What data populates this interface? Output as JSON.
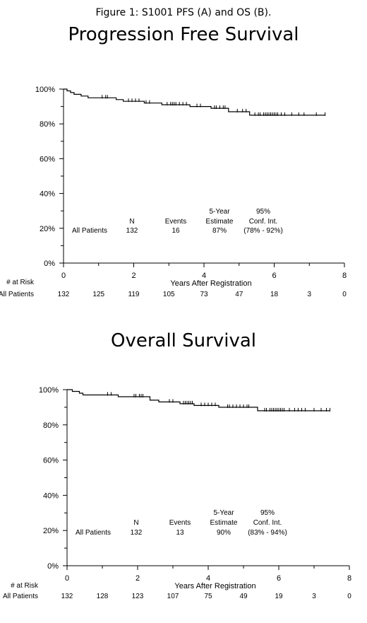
{
  "caption": "Figure 1: S1001 PFS (A) and OS (B).",
  "chart_data": [
    {
      "type": "line",
      "title": "Progression Free Survival",
      "xlabel": "Years After Registration",
      "ylabel": "",
      "xlim": [
        0,
        8
      ],
      "ylim": [
        0,
        100
      ],
      "x_ticks": [
        "0",
        "2",
        "4",
        "6",
        "8"
      ],
      "y_ticks": [
        "0%",
        "20%",
        "40%",
        "60%",
        "80%",
        "100%"
      ],
      "series": [
        {
          "curve": [
            [
              0,
              100
            ],
            [
              0.1,
              100
            ],
            [
              0.1,
              99
            ],
            [
              0.2,
              99
            ],
            [
              0.2,
              98
            ],
            [
              0.3,
              98
            ],
            [
              0.3,
              97
            ],
            [
              0.5,
              97
            ],
            [
              0.5,
              96
            ],
            [
              0.7,
              96
            ],
            [
              0.7,
              95
            ],
            [
              1.5,
              95
            ],
            [
              1.5,
              94
            ],
            [
              1.7,
              94
            ],
            [
              1.7,
              93
            ],
            [
              2.3,
              93
            ],
            [
              2.3,
              92
            ],
            [
              2.8,
              92
            ],
            [
              2.8,
              91
            ],
            [
              3.6,
              91
            ],
            [
              3.6,
              90
            ],
            [
              4.2,
              90
            ],
            [
              4.2,
              89
            ],
            [
              4.7,
              89
            ],
            [
              4.7,
              87
            ],
            [
              5.3,
              87
            ],
            [
              5.3,
              85
            ],
            [
              7.45,
              85
            ]
          ],
          "censor_marks": [
            [
              1.1,
              95
            ],
            [
              1.2,
              95
            ],
            [
              1.25,
              95
            ],
            [
              1.85,
              93
            ],
            [
              1.95,
              93
            ],
            [
              2.05,
              93
            ],
            [
              2.15,
              93
            ],
            [
              2.35,
              92
            ],
            [
              2.45,
              92
            ],
            [
              2.95,
              91
            ],
            [
              3.05,
              91
            ],
            [
              3.1,
              91
            ],
            [
              3.15,
              91
            ],
            [
              3.2,
              91
            ],
            [
              3.3,
              91
            ],
            [
              3.4,
              91
            ],
            [
              3.5,
              91
            ],
            [
              3.8,
              90
            ],
            [
              3.9,
              90
            ],
            [
              4.3,
              89
            ],
            [
              4.35,
              89
            ],
            [
              4.45,
              89
            ],
            [
              4.55,
              89
            ],
            [
              4.6,
              89
            ],
            [
              4.95,
              87
            ],
            [
              5.1,
              87
            ],
            [
              5.2,
              87
            ],
            [
              5.45,
              85
            ],
            [
              5.55,
              85
            ],
            [
              5.6,
              85
            ],
            [
              5.7,
              85
            ],
            [
              5.75,
              85
            ],
            [
              5.8,
              85
            ],
            [
              5.85,
              85
            ],
            [
              5.9,
              85
            ],
            [
              5.95,
              85
            ],
            [
              6.0,
              85
            ],
            [
              6.05,
              85
            ],
            [
              6.1,
              85
            ],
            [
              6.2,
              85
            ],
            [
              6.3,
              85
            ],
            [
              6.5,
              85
            ],
            [
              6.7,
              85
            ],
            [
              6.85,
              85
            ],
            [
              7.2,
              85
            ],
            [
              7.45,
              85
            ]
          ]
        }
      ],
      "stats_table": {
        "headers": [
          "N",
          "Events",
          "5-Year\nEstimate",
          "95%\nConf. Int."
        ],
        "row_label": "All Patients",
        "values": [
          "132",
          "16",
          "87%",
          "(78% - 92%)"
        ]
      },
      "at_risk": {
        "title": "# at Risk",
        "row_label": "All Patients",
        "values": [
          "132",
          "125",
          "119",
          "105",
          "73",
          "47",
          "18",
          "3",
          "0"
        ]
      }
    },
    {
      "type": "line",
      "title": "Overall Survival",
      "xlabel": "Years After Registration",
      "ylabel": "",
      "xlim": [
        0,
        8
      ],
      "ylim": [
        0,
        100
      ],
      "x_ticks": [
        "0",
        "2",
        "4",
        "6",
        "8"
      ],
      "y_ticks": [
        "0%",
        "20%",
        "40%",
        "60%",
        "80%",
        "100%"
      ],
      "series": [
        {
          "curve": [
            [
              0,
              100
            ],
            [
              0.15,
              100
            ],
            [
              0.15,
              99
            ],
            [
              0.35,
              99
            ],
            [
              0.35,
              98
            ],
            [
              0.45,
              98
            ],
            [
              0.45,
              97
            ],
            [
              1.45,
              97
            ],
            [
              1.45,
              96
            ],
            [
              2.35,
              96
            ],
            [
              2.35,
              94
            ],
            [
              2.6,
              94
            ],
            [
              2.6,
              93
            ],
            [
              3.2,
              93
            ],
            [
              3.2,
              92
            ],
            [
              3.6,
              92
            ],
            [
              3.6,
              91
            ],
            [
              4.3,
              91
            ],
            [
              4.3,
              90
            ],
            [
              5.4,
              90
            ],
            [
              5.4,
              88
            ],
            [
              7.45,
              88
            ]
          ],
          "censor_marks": [
            [
              1.15,
              97
            ],
            [
              1.25,
              97
            ],
            [
              1.9,
              96
            ],
            [
              1.95,
              96
            ],
            [
              2.05,
              96
            ],
            [
              2.1,
              96
            ],
            [
              2.15,
              96
            ],
            [
              2.9,
              93
            ],
            [
              3.0,
              93
            ],
            [
              3.3,
              92
            ],
            [
              3.35,
              92
            ],
            [
              3.4,
              92
            ],
            [
              3.45,
              92
            ],
            [
              3.5,
              92
            ],
            [
              3.55,
              92
            ],
            [
              3.8,
              91
            ],
            [
              3.9,
              91
            ],
            [
              4.0,
              91
            ],
            [
              4.1,
              91
            ],
            [
              4.2,
              91
            ],
            [
              4.55,
              90
            ],
            [
              4.6,
              90
            ],
            [
              4.7,
              90
            ],
            [
              4.8,
              90
            ],
            [
              4.9,
              90
            ],
            [
              5.0,
              90
            ],
            [
              5.1,
              90
            ],
            [
              5.15,
              90
            ],
            [
              5.6,
              88
            ],
            [
              5.65,
              88
            ],
            [
              5.75,
              88
            ],
            [
              5.8,
              88
            ],
            [
              5.85,
              88
            ],
            [
              5.9,
              88
            ],
            [
              5.95,
              88
            ],
            [
              6.0,
              88
            ],
            [
              6.05,
              88
            ],
            [
              6.1,
              88
            ],
            [
              6.15,
              88
            ],
            [
              6.3,
              88
            ],
            [
              6.45,
              88
            ],
            [
              6.55,
              88
            ],
            [
              6.65,
              88
            ],
            [
              6.75,
              88
            ],
            [
              7.0,
              88
            ],
            [
              7.2,
              88
            ],
            [
              7.35,
              88
            ],
            [
              7.45,
              88
            ]
          ]
        }
      ],
      "stats_table": {
        "headers": [
          "N",
          "Events",
          "5-Year\nEstimate",
          "95%\nConf. Int."
        ],
        "row_label": "All Patients",
        "values": [
          "132",
          "13",
          "90%",
          "(83% - 94%)"
        ]
      },
      "at_risk": {
        "title": "# at Risk",
        "row_label": "All Patients",
        "values": [
          "132",
          "128",
          "123",
          "107",
          "75",
          "49",
          "19",
          "3",
          "0"
        ]
      }
    }
  ]
}
